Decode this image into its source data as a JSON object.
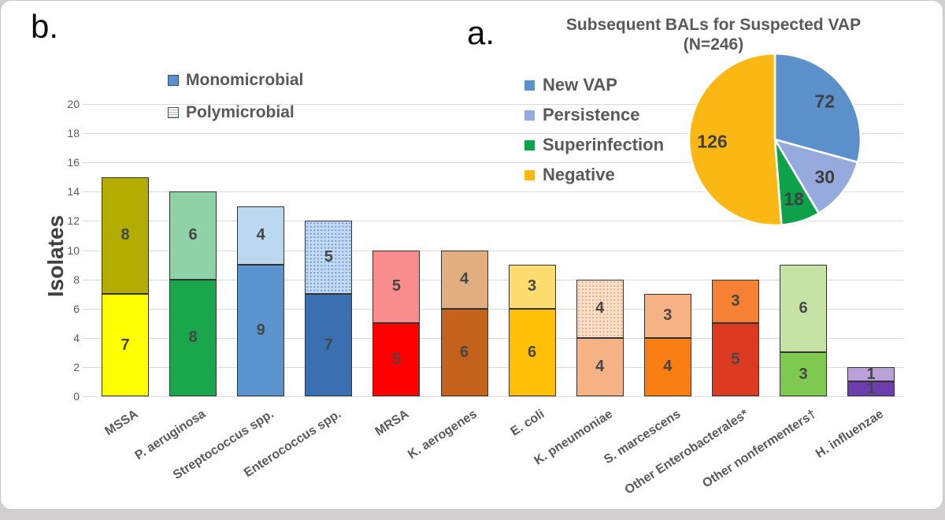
{
  "figure": {
    "panel_b_label": "b.",
    "panel_a_label": "a."
  },
  "chart_data": [
    {
      "type": "bar",
      "panel": "b.",
      "stacked": true,
      "ylabel": "Isolates",
      "ylim": [
        0,
        20
      ],
      "ytick_step": 2,
      "grid": true,
      "legend_position": "top-left-inside",
      "categories": [
        "MSSA",
        "P. aeruginosa",
        "Streptococcus spp.",
        "Enterococcus spp.",
        "MRSA",
        "K. aerogenes",
        "E. coli",
        "K. pneumoniae",
        "S. marcescens",
        "Other Enterobacterales*",
        "Other nonfermenters†",
        "H. influenzae"
      ],
      "series": [
        {
          "name": "Monomicrobial",
          "values": [
            7,
            8,
            9,
            7,
            5,
            6,
            6,
            4,
            4,
            5,
            3,
            1
          ]
        },
        {
          "name": "Polymicrobial",
          "values": [
            8,
            6,
            4,
            5,
            5,
            4,
            3,
            4,
            3,
            3,
            6,
            1
          ]
        }
      ],
      "totals": [
        15,
        14,
        13,
        12,
        10,
        10,
        9,
        8,
        7,
        8,
        9,
        2
      ],
      "styles": [
        {
          "mono": "#FFFF00",
          "poly": "#B2AD00",
          "poly_pattern": "solid"
        },
        {
          "mono": "#1AA64D",
          "poly": "#8FD2A6",
          "poly_pattern": "solid"
        },
        {
          "mono": "#5C94D0",
          "poly": "#BCD7F0",
          "poly_pattern": "solid"
        },
        {
          "mono": "#3A70B2",
          "poly": "#C4D9F2",
          "poly_pattern": "dots",
          "dot_color": "#6FA0D6"
        },
        {
          "mono": "#FF0000",
          "poly": "#F98C8C",
          "poly_pattern": "solid"
        },
        {
          "mono": "#C2621D",
          "poly": "#E2AD7F",
          "poly_pattern": "solid"
        },
        {
          "mono": "#FDC006",
          "poly": "#FEDC6F",
          "poly_pattern": "solid"
        },
        {
          "mono": "#F5B285",
          "poly": "#FBE2CE",
          "poly_pattern": "dots",
          "dot_color": "#F0A875"
        },
        {
          "mono": "#F97F15",
          "poly": "#F6B184",
          "poly_pattern": "solid"
        },
        {
          "mono": "#DA3B20",
          "poly": "#F58134",
          "poly_pattern": "solid"
        },
        {
          "mono": "#7FC951",
          "poly": "#C6E3A5",
          "poly_pattern": "solid"
        },
        {
          "mono": "#6D3CAD",
          "poly": "#BAA2D9",
          "poly_pattern": "solid"
        }
      ]
    },
    {
      "type": "pie",
      "panel": "a.",
      "title": "Subsequent BALs for Suspected VAP",
      "subtitle": "(N=246)",
      "total": 246,
      "start_angle": "top",
      "direction": "clockwise",
      "legend_position": "left",
      "slices": [
        {
          "label": "New VAP",
          "value": 72,
          "color": "#5B90CB"
        },
        {
          "label": "Persistence",
          "value": 30,
          "color": "#97AADD"
        },
        {
          "label": "Superinfection",
          "value": 18,
          "color": "#0DA24A"
        },
        {
          "label": "Negative",
          "value": 126,
          "color": "#FBB814"
        }
      ]
    }
  ]
}
